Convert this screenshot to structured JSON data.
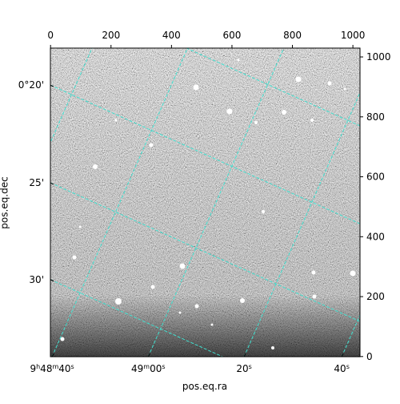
{
  "chart_data": {
    "type": "image",
    "xlabel": "pos.eq.ra",
    "ylabel": "pos.eq.dec",
    "xlim": [
      -0.5,
      1023.5
    ],
    "ylim": [
      -0.5,
      1029.5
    ],
    "xticks": [
      0,
      200,
      400,
      600,
      800,
      1000
    ],
    "yticks": [
      0,
      200,
      400,
      600,
      800,
      1000
    ],
    "ra_ticks": [
      {
        "value": 5,
        "label": "9h48m40s"
      },
      {
        "value": 323,
        "label": "49m00s"
      },
      {
        "value": 640,
        "label": "20s"
      },
      {
        "value": 963,
        "label": "40s"
      }
    ],
    "dec_ticks": [
      {
        "value": 906,
        "label": "0°20'"
      },
      {
        "value": 580,
        "label": "25'"
      },
      {
        "value": 257,
        "label": "30'"
      }
    ],
    "grid_color": "#40e0d0"
  }
}
